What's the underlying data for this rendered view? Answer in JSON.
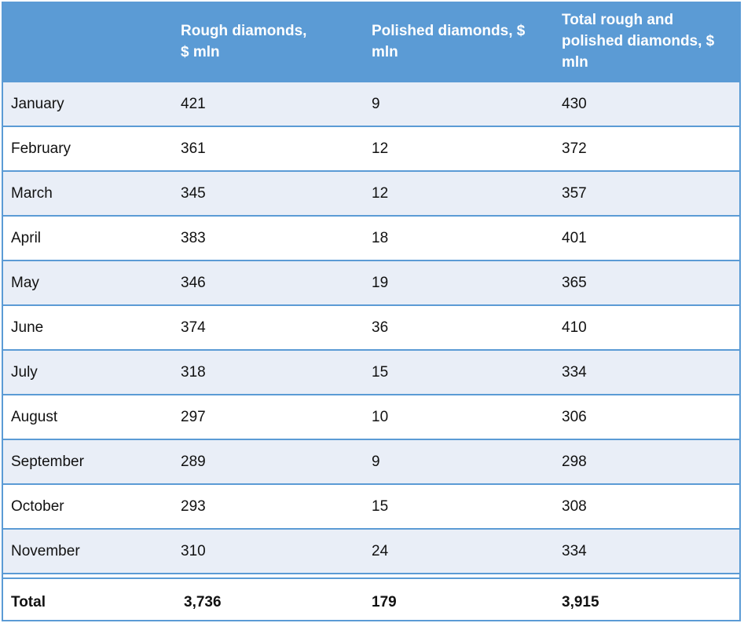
{
  "table": {
    "header": [
      "Rough diamonds, $ mln",
      "Polished diamonds, $ mln",
      "Total rough and polished diamonds, $ mln"
    ],
    "rows": [
      [
        "January",
        421,
        9,
        430
      ],
      [
        "February",
        361,
        12,
        372
      ],
      [
        "March",
        345,
        12,
        357
      ],
      [
        "April",
        383,
        18,
        401
      ],
      [
        "May",
        346,
        19,
        365
      ],
      [
        "June",
        374,
        36,
        410
      ],
      [
        "July",
        318,
        15,
        334
      ],
      [
        "August",
        297,
        10,
        306
      ],
      [
        "September",
        289,
        9,
        298
      ],
      [
        "October",
        293,
        15,
        308
      ],
      [
        "November",
        310,
        24,
        334
      ]
    ],
    "total": [
      "Total",
      "3,736",
      179,
      "3,915"
    ]
  }
}
